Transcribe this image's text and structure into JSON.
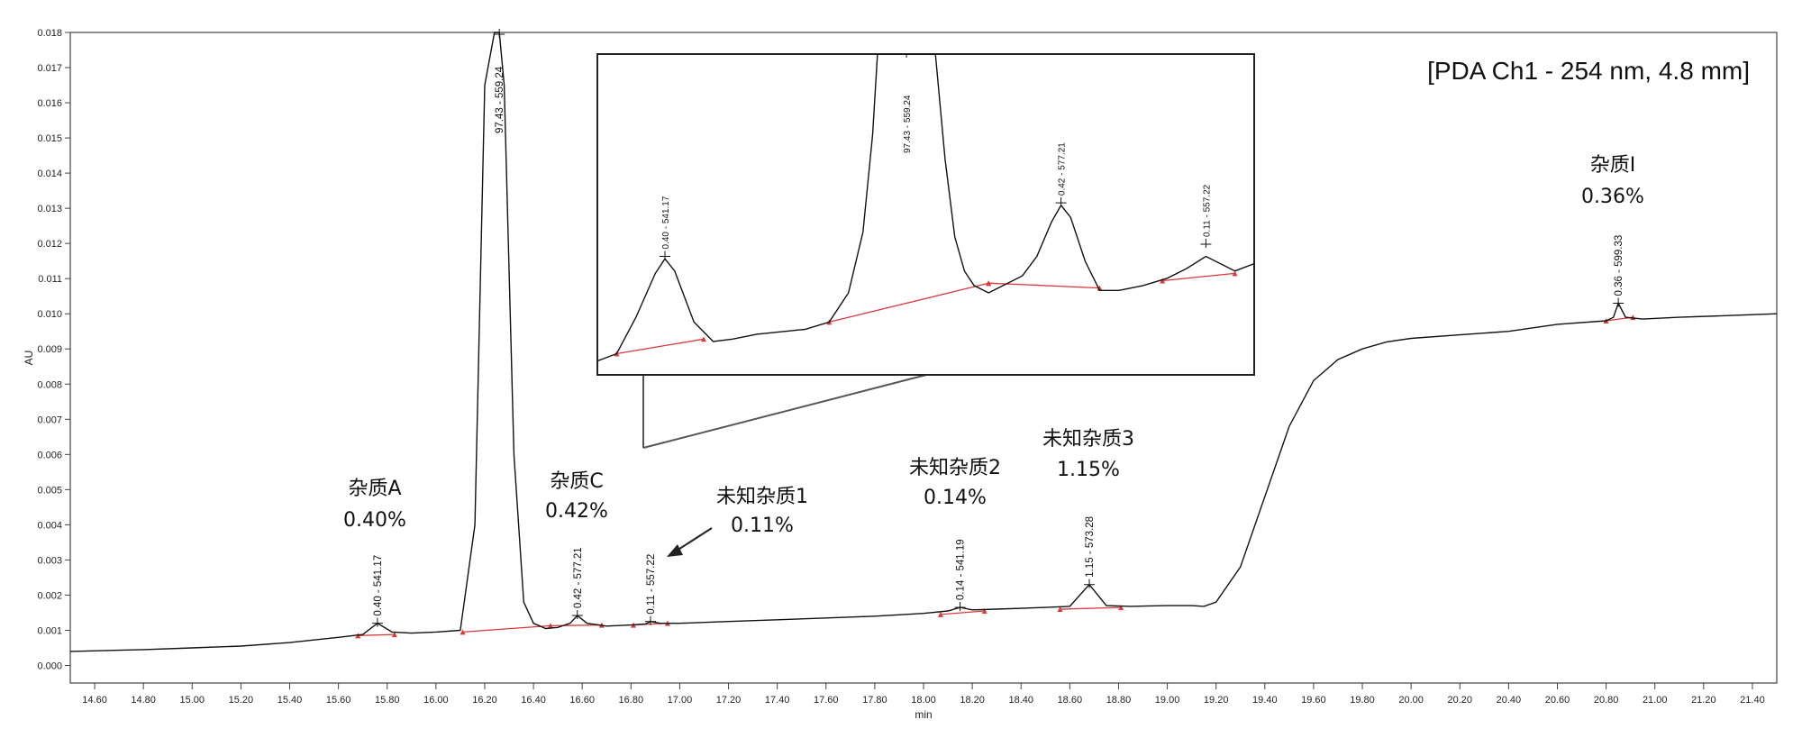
{
  "chart_data": {
    "type": "line",
    "title": "[PDA Ch1 - 254 nm, 4.8 mm]",
    "xlabel": "min",
    "ylabel": "AU",
    "xlim": [
      14.5,
      21.5
    ],
    "ylim": [
      -0.0005,
      0.018
    ],
    "x_ticks": [
      "14.60",
      "14.80",
      "15.00",
      "15.20",
      "15.40",
      "15.60",
      "15.80",
      "16.00",
      "16.20",
      "16.40",
      "16.60",
      "16.80",
      "17.00",
      "17.20",
      "17.40",
      "17.60",
      "17.80",
      "18.00",
      "18.20",
      "18.40",
      "18.60",
      "18.80",
      "19.00",
      "19.20",
      "19.40",
      "19.60",
      "19.80",
      "20.00",
      "20.20",
      "20.40",
      "20.60",
      "20.80",
      "21.00",
      "21.20",
      "21.40"
    ],
    "y_ticks": [
      "0.000",
      "0.001",
      "0.002",
      "0.003",
      "0.004",
      "0.005",
      "0.006",
      "0.007",
      "0.008",
      "0.009",
      "0.010",
      "0.011",
      "0.012",
      "0.013",
      "0.014",
      "0.015",
      "0.016",
      "0.017",
      "0.018"
    ],
    "grid": false,
    "series": [
      {
        "color": "#111111",
        "x": [
          14.5,
          14.8,
          15.0,
          15.2,
          15.4,
          15.6,
          15.7,
          15.76,
          15.82,
          15.9,
          16.0,
          16.1,
          16.16,
          16.2,
          16.24,
          16.26,
          16.28,
          16.32,
          16.36,
          16.4,
          16.45,
          16.5,
          16.55,
          16.58,
          16.62,
          16.7,
          16.8,
          16.86,
          16.88,
          16.92,
          17.0,
          17.2,
          17.4,
          17.6,
          17.8,
          18.0,
          18.1,
          18.15,
          18.2,
          18.3,
          18.5,
          18.6,
          18.68,
          18.75,
          18.85,
          19.0,
          19.1,
          19.15,
          19.2,
          19.3,
          19.4,
          19.5,
          19.6,
          19.7,
          19.8,
          19.9,
          20.0,
          20.2,
          20.4,
          20.6,
          20.8,
          20.83,
          20.85,
          20.88,
          20.95,
          21.1,
          21.3,
          21.5
        ],
        "y": [
          0.0004,
          0.00045,
          0.0005,
          0.00055,
          0.00065,
          0.0008,
          0.00088,
          0.0012,
          0.00095,
          0.00092,
          0.00095,
          0.001,
          0.004,
          0.0165,
          0.018,
          0.018,
          0.0165,
          0.006,
          0.0018,
          0.0012,
          0.00105,
          0.00108,
          0.0012,
          0.00142,
          0.0012,
          0.00112,
          0.00115,
          0.00118,
          0.00125,
          0.0012,
          0.0012,
          0.00125,
          0.0013,
          0.00135,
          0.0014,
          0.00148,
          0.00155,
          0.00165,
          0.00158,
          0.0016,
          0.00165,
          0.00168,
          0.0023,
          0.0017,
          0.00168,
          0.0017,
          0.0017,
          0.00168,
          0.0018,
          0.0028,
          0.0048,
          0.0068,
          0.0081,
          0.0087,
          0.009,
          0.0092,
          0.0093,
          0.0094,
          0.0095,
          0.0097,
          0.0098,
          0.0099,
          0.0103,
          0.0099,
          0.00985,
          0.0099,
          0.00995,
          0.01
        ]
      }
    ],
    "peak_labels": [
      {
        "x": 15.76,
        "y": 0.0012,
        "text": "0.40 - 541.17"
      },
      {
        "x": 16.26,
        "y": 0.018,
        "text": "97.43 - 559.24"
      },
      {
        "x": 16.58,
        "y": 0.00142,
        "text": "0.42 - 577.21"
      },
      {
        "x": 16.88,
        "y": 0.00125,
        "text": "0.11 - 557.22"
      },
      {
        "x": 18.15,
        "y": 0.00165,
        "text": "0.14 - 541.19"
      },
      {
        "x": 18.68,
        "y": 0.0023,
        "text": "1.15 - 573.28"
      },
      {
        "x": 20.85,
        "y": 0.0103,
        "text": "0.36 - 599.33"
      }
    ],
    "baseline_segments": [
      {
        "x": [
          15.68,
          15.83
        ],
        "y": [
          0.00085,
          0.00088
        ]
      },
      {
        "x": [
          16.11,
          16.47
        ],
        "y": [
          0.00095,
          0.00113
        ]
      },
      {
        "x": [
          16.47,
          16.68
        ],
        "y": [
          0.00113,
          0.00115
        ]
      },
      {
        "x": [
          16.81,
          16.95
        ],
        "y": [
          0.00115,
          0.0012
        ]
      },
      {
        "x": [
          18.07,
          18.25
        ],
        "y": [
          0.00145,
          0.00155
        ]
      },
      {
        "x": [
          18.56,
          18.81
        ],
        "y": [
          0.0016,
          0.00165
        ]
      },
      {
        "x": [
          20.8,
          20.91
        ],
        "y": [
          0.0098,
          0.0099
        ]
      }
    ],
    "annotations": [
      {
        "name": "杂质A",
        "percent": "0.40%"
      },
      {
        "name": "杂质C",
        "percent": "0.42%"
      },
      {
        "name": "未知杂质1",
        "percent": "0.11%"
      },
      {
        "name": "未知杂质2",
        "percent": "0.14%"
      },
      {
        "name": "未知杂质3",
        "percent": "1.15%"
      },
      {
        "name": "杂质I",
        "percent": "0.36%"
      }
    ],
    "inset": {
      "xlim": [
        15.62,
        16.98
      ],
      "ylim": [
        0.00075,
        0.00155
      ],
      "peak_labels": [
        {
          "x": 15.76,
          "y": 0.0012,
          "text": "0.40 - 541.17"
        },
        {
          "x": 16.26,
          "y": 0.0025,
          "text": "97.43 - 559.24"
        },
        {
          "x": 16.58,
          "y": 0.00142,
          "text": "0.42 - 577.21"
        },
        {
          "x": 16.88,
          "y": 0.00125,
          "text": "0.11 - 557.22"
        }
      ],
      "series_x": [
        15.62,
        15.66,
        15.7,
        15.74,
        15.76,
        15.78,
        15.82,
        15.86,
        15.9,
        15.95,
        16.0,
        16.05,
        16.1,
        16.14,
        16.17,
        16.19,
        16.2,
        16.21,
        16.31,
        16.32,
        16.34,
        16.36,
        16.38,
        16.4,
        16.43,
        16.46,
        16.5,
        16.53,
        16.56,
        16.58,
        16.6,
        16.63,
        16.66,
        16.7,
        16.75,
        16.8,
        16.84,
        16.88,
        16.91,
        16.94,
        16.98
      ],
      "series_y": [
        0.00077,
        0.0008,
        0.00095,
        0.00113,
        0.00119,
        0.00114,
        0.00093,
        0.00085,
        0.00086,
        0.00088,
        0.00089,
        0.0009,
        0.00093,
        0.00105,
        0.0013,
        0.0017,
        0.0025,
        0.003,
        0.003,
        0.0023,
        0.0016,
        0.00128,
        0.00114,
        0.00108,
        0.00105,
        0.00108,
        0.00112,
        0.0012,
        0.00134,
        0.00141,
        0.00136,
        0.00118,
        0.00106,
        0.00106,
        0.00108,
        0.00111,
        0.00115,
        0.0012,
        0.00117,
        0.00114,
        0.00117
      ],
      "baseline_segments": [
        {
          "x": [
            15.66,
            15.84
          ],
          "y": [
            0.0008,
            0.00086
          ]
        },
        {
          "x": [
            16.1,
            16.43
          ],
          "y": [
            0.00093,
            0.00109
          ]
        },
        {
          "x": [
            16.43,
            16.66
          ],
          "y": [
            0.00109,
            0.00107
          ]
        },
        {
          "x": [
            16.79,
            16.94
          ],
          "y": [
            0.0011,
            0.00113
          ]
        }
      ]
    }
  }
}
